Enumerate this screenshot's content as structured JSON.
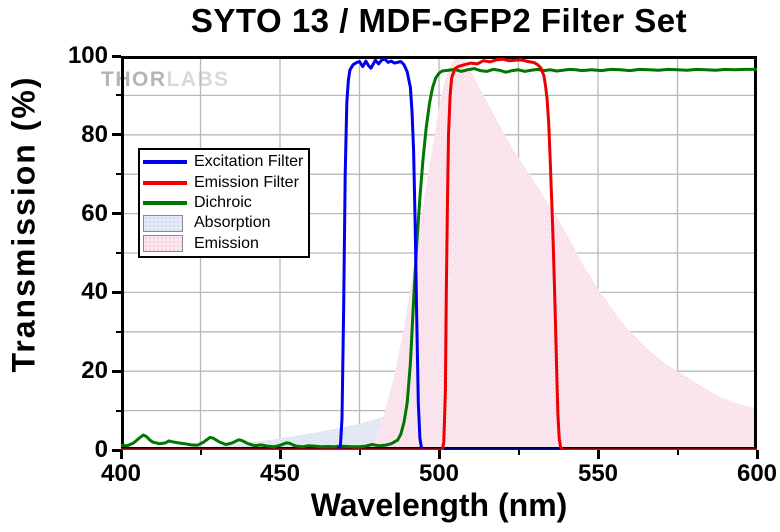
{
  "figure": {
    "title": "SYTO 13 / MDF-GFP2 Filter Set",
    "watermark": {
      "part1": "THOR",
      "part2": "LABS"
    }
  },
  "chart_data": {
    "type": "line",
    "title": "SYTO 13 / MDF-GFP2 Filter Set",
    "xlabel": "Wavelength (nm)",
    "ylabel": "Transmission (%)",
    "xlim": [
      400,
      600
    ],
    "ylim": [
      0,
      100
    ],
    "x_major_ticks": [
      400,
      450,
      500,
      550,
      600
    ],
    "x_minor_ticks": [
      425,
      475,
      525,
      575
    ],
    "y_major_ticks": [
      0,
      20,
      40,
      60,
      80,
      100
    ],
    "y_minor_ticks": [
      10,
      30,
      50,
      70,
      90
    ],
    "grid": "on, every 25 nm and 10 %",
    "grid_color": "#b9b9b9",
    "frame_color": "#000000",
    "legend_position": "upper-left-inside",
    "draw_order": [
      "Absorption",
      "Emission",
      "Dichroic",
      "Excitation Filter",
      "Emission Filter"
    ],
    "series": [
      {
        "name": "Excitation Filter",
        "type": "line",
        "color": "#0000ee",
        "points": [
          [
            400,
            0
          ],
          [
            465,
            0
          ],
          [
            468,
            0
          ],
          [
            469,
            1
          ],
          [
            469.5,
            8
          ],
          [
            470,
            35
          ],
          [
            470.5,
            70
          ],
          [
            471,
            88
          ],
          [
            471.5,
            94
          ],
          [
            472,
            96.5
          ],
          [
            473,
            97.8
          ],
          [
            474,
            98.3
          ],
          [
            475,
            98.6
          ],
          [
            476,
            97.3
          ],
          [
            477,
            98.7
          ],
          [
            477.8,
            97.6
          ],
          [
            478.6,
            96.9
          ],
          [
            480,
            98.9
          ],
          [
            481,
            98.0
          ],
          [
            482,
            99.0
          ],
          [
            483,
            99.2
          ],
          [
            484,
            98.4
          ],
          [
            485,
            98.7
          ],
          [
            486,
            98.2
          ],
          [
            487,
            98.4
          ],
          [
            488,
            98.6
          ],
          [
            489,
            97.8
          ],
          [
            490,
            96.0
          ],
          [
            491,
            92
          ],
          [
            491.5,
            86
          ],
          [
            492,
            76
          ],
          [
            492.5,
            58
          ],
          [
            493,
            34
          ],
          [
            493.5,
            12
          ],
          [
            494,
            3
          ],
          [
            494.5,
            0.5
          ],
          [
            495,
            0
          ],
          [
            600,
            0
          ]
        ]
      },
      {
        "name": "Emission Filter",
        "type": "line",
        "color": "#ee0000",
        "points": [
          [
            400,
            0
          ],
          [
            501,
            0
          ],
          [
            501.5,
            2
          ],
          [
            502,
            15
          ],
          [
            502.3,
            40
          ],
          [
            502.7,
            65
          ],
          [
            503,
            80
          ],
          [
            503.5,
            90
          ],
          [
            504,
            94.5
          ],
          [
            505,
            96.8
          ],
          [
            506,
            97.3
          ],
          [
            508,
            97.8
          ],
          [
            510,
            98.2
          ],
          [
            512,
            98.0
          ],
          [
            514,
            98.8
          ],
          [
            516,
            98.5
          ],
          [
            518,
            99.0
          ],
          [
            520,
            99.2
          ],
          [
            522,
            98.8
          ],
          [
            524,
            98.9
          ],
          [
            526,
            99.0
          ],
          [
            528,
            98.6
          ],
          [
            530,
            98.3
          ],
          [
            531,
            97.8
          ],
          [
            532,
            97.0
          ],
          [
            533,
            95
          ],
          [
            533.5,
            92.5
          ],
          [
            534,
            89
          ],
          [
            534.5,
            83
          ],
          [
            535,
            73
          ],
          [
            535.3,
            66
          ],
          [
            535.6,
            60
          ],
          [
            536,
            50
          ],
          [
            536.3,
            42
          ],
          [
            536.6,
            33
          ],
          [
            537,
            20
          ],
          [
            537.4,
            9
          ],
          [
            537.8,
            3
          ],
          [
            538.2,
            0.8
          ],
          [
            539,
            0
          ],
          [
            600,
            0
          ]
        ]
      },
      {
        "name": "Dichroic",
        "type": "line",
        "color": "#007700",
        "points": [
          [
            400,
            1.2
          ],
          [
            402,
            1.1
          ],
          [
            404,
            1.8
          ],
          [
            406,
            3.2
          ],
          [
            407,
            3.8
          ],
          [
            408,
            3.4
          ],
          [
            409,
            2.6
          ],
          [
            410,
            2.0
          ],
          [
            412,
            1.6
          ],
          [
            414,
            1.8
          ],
          [
            415,
            2.3
          ],
          [
            416,
            2.1
          ],
          [
            418,
            1.8
          ],
          [
            420,
            1.6
          ],
          [
            422,
            1.3
          ],
          [
            424,
            1.2
          ],
          [
            426,
            2.0
          ],
          [
            428,
            3.2
          ],
          [
            429,
            3.0
          ],
          [
            431,
            2.0
          ],
          [
            433,
            1.4
          ],
          [
            435,
            1.8
          ],
          [
            437,
            2.6
          ],
          [
            438,
            2.4
          ],
          [
            440,
            1.6
          ],
          [
            442,
            1.1
          ],
          [
            444,
            1.3
          ],
          [
            446,
            1.0
          ],
          [
            448,
            0.8
          ],
          [
            450,
            1.2
          ],
          [
            452,
            1.8
          ],
          [
            453,
            1.7
          ],
          [
            455,
            1.0
          ],
          [
            457,
            0.8
          ],
          [
            459,
            1.1
          ],
          [
            461,
            1.0
          ],
          [
            463,
            0.8
          ],
          [
            465,
            0.9
          ],
          [
            467,
            0.8
          ],
          [
            469,
            1.0
          ],
          [
            471,
            0.9
          ],
          [
            473,
            0.8
          ],
          [
            475,
            0.8
          ],
          [
            477,
            1.0
          ],
          [
            479,
            1.4
          ],
          [
            481,
            1.1
          ],
          [
            483,
            1.2
          ],
          [
            485,
            1.6
          ],
          [
            487,
            2.5
          ],
          [
            488,
            4
          ],
          [
            489,
            7
          ],
          [
            490,
            12
          ],
          [
            491,
            22
          ],
          [
            492,
            38
          ],
          [
            493,
            52
          ],
          [
            494,
            64
          ],
          [
            495,
            74
          ],
          [
            496,
            82
          ],
          [
            497,
            88
          ],
          [
            498,
            92
          ],
          [
            499,
            94.5
          ],
          [
            500,
            95.6
          ],
          [
            501,
            96.2
          ],
          [
            503,
            96.4
          ],
          [
            505,
            96.6
          ],
          [
            507,
            96.1
          ],
          [
            509,
            96.5
          ],
          [
            511,
            96.8
          ],
          [
            513,
            96.3
          ],
          [
            515,
            96.1
          ],
          [
            517,
            96.6
          ],
          [
            519,
            96.4
          ],
          [
            521,
            95.9
          ],
          [
            523,
            96.3
          ],
          [
            525,
            96.5
          ],
          [
            527,
            96.1
          ],
          [
            529,
            96.4
          ],
          [
            531,
            96.6
          ],
          [
            533,
            96.3
          ],
          [
            535,
            96.5
          ],
          [
            537,
            96.2
          ],
          [
            539,
            96.4
          ],
          [
            541,
            96.6
          ],
          [
            543,
            96.5
          ],
          [
            545,
            96.3
          ],
          [
            548,
            96.5
          ],
          [
            551,
            96.3
          ],
          [
            554,
            96.6
          ],
          [
            557,
            96.5
          ],
          [
            560,
            96.3
          ],
          [
            563,
            96.6
          ],
          [
            566,
            96.5
          ],
          [
            569,
            96.4
          ],
          [
            572,
            96.6
          ],
          [
            575,
            96.5
          ],
          [
            578,
            96.4
          ],
          [
            581,
            96.6
          ],
          [
            584,
            96.5
          ],
          [
            587,
            96.4
          ],
          [
            590,
            96.6
          ],
          [
            593,
            96.5
          ],
          [
            596,
            96.6
          ],
          [
            600,
            96.6
          ]
        ]
      },
      {
        "name": "Absorption",
        "type": "area",
        "color": "#e4ebf7",
        "dot_color": "#c8d5ee",
        "points": [
          [
            400,
            0.2
          ],
          [
            410,
            0.3
          ],
          [
            420,
            0.5
          ],
          [
            425,
            0.7
          ],
          [
            430,
            1.0
          ],
          [
            435,
            1.4
          ],
          [
            440,
            1.9
          ],
          [
            445,
            2.4
          ],
          [
            450,
            3.0
          ],
          [
            455,
            3.6
          ],
          [
            460,
            4.3
          ],
          [
            465,
            5.0
          ],
          [
            470,
            5.8
          ],
          [
            475,
            6.7
          ],
          [
            480,
            7.8
          ],
          [
            483,
            8.6
          ],
          [
            486,
            9.2
          ],
          [
            489,
            9.7
          ],
          [
            491,
            10.0
          ],
          [
            493,
            9.9
          ],
          [
            495,
            9.5
          ],
          [
            498,
            8.8
          ],
          [
            500,
            8.2
          ],
          [
            503,
            7.2
          ],
          [
            506,
            6.3
          ],
          [
            509,
            5.5
          ],
          [
            512,
            4.8
          ],
          [
            515,
            4.2
          ],
          [
            518,
            3.6
          ],
          [
            521,
            3.1
          ],
          [
            524,
            2.6
          ],
          [
            527,
            2.2
          ],
          [
            530,
            1.8
          ],
          [
            534,
            1.4
          ],
          [
            538,
            1.1
          ],
          [
            542,
            0.8
          ],
          [
            546,
            0.6
          ],
          [
            550,
            0.45
          ],
          [
            555,
            0.3
          ],
          [
            560,
            0.2
          ],
          [
            566,
            0.1
          ],
          [
            572,
            0.05
          ],
          [
            580,
            0
          ],
          [
            600,
            0
          ]
        ]
      },
      {
        "name": "Emission",
        "type": "area",
        "color": "#fce6ef",
        "dot_color": "#f4c9da",
        "points": [
          [
            400,
            0
          ],
          [
            474,
            0
          ],
          [
            477,
            0.5
          ],
          [
            479,
            1.5
          ],
          [
            480,
            3
          ],
          [
            481,
            5
          ],
          [
            482,
            7.5
          ],
          [
            483,
            10
          ],
          [
            484,
            13
          ],
          [
            485,
            16
          ],
          [
            486,
            19
          ],
          [
            487,
            23
          ],
          [
            488,
            27
          ],
          [
            489,
            31
          ],
          [
            490,
            36
          ],
          [
            491,
            41
          ],
          [
            492,
            46
          ],
          [
            493,
            52
          ],
          [
            494,
            57
          ],
          [
            495,
            62
          ],
          [
            496,
            67
          ],
          [
            497,
            72
          ],
          [
            498,
            77
          ],
          [
            499,
            82
          ],
          [
            500,
            87
          ],
          [
            501,
            91
          ],
          [
            502,
            94
          ],
          [
            503,
            96.5
          ],
          [
            504,
            98.3
          ],
          [
            505,
            99.4
          ],
          [
            506,
            100
          ],
          [
            507,
            100
          ],
          [
            508,
            99.3
          ],
          [
            509,
            98
          ],
          [
            510,
            96.5
          ],
          [
            512,
            93
          ],
          [
            514,
            90
          ],
          [
            516,
            87
          ],
          [
            518,
            84
          ],
          [
            520,
            81
          ],
          [
            522,
            78
          ],
          [
            524,
            75.5
          ],
          [
            526,
            73
          ],
          [
            528,
            70.5
          ],
          [
            530,
            68
          ],
          [
            532,
            65.5
          ],
          [
            534,
            63
          ],
          [
            536,
            60.5
          ],
          [
            538,
            58
          ],
          [
            540,
            55
          ],
          [
            542,
            52
          ],
          [
            544,
            49
          ],
          [
            546,
            46
          ],
          [
            548,
            43.5
          ],
          [
            550,
            41
          ],
          [
            553,
            37.5
          ],
          [
            556,
            34
          ],
          [
            559,
            31
          ],
          [
            562,
            28.5
          ],
          [
            565,
            26
          ],
          [
            568,
            24
          ],
          [
            571,
            22
          ],
          [
            574,
            20.5
          ],
          [
            577,
            19
          ],
          [
            580,
            17.5
          ],
          [
            583,
            16
          ],
          [
            586,
            14.5
          ],
          [
            589,
            13.3
          ],
          [
            592,
            12.3
          ],
          [
            595,
            11.5
          ],
          [
            598,
            11
          ],
          [
            600,
            10.8
          ]
        ]
      }
    ]
  },
  "legend": {
    "items": [
      {
        "label": "Excitation Filter",
        "swatch": "line",
        "color": "#0000ee"
      },
      {
        "label": "Emission Filter",
        "swatch": "line",
        "color": "#ee0000"
      },
      {
        "label": "Dichroic",
        "swatch": "line",
        "color": "#007700"
      },
      {
        "label": "Absorption",
        "swatch": "fill",
        "color": "#e4ebf7",
        "dot_color": "#c8d5ee"
      },
      {
        "label": "Emission",
        "swatch": "fill",
        "color": "#fce6ef",
        "dot_color": "#f4c9da"
      }
    ]
  }
}
